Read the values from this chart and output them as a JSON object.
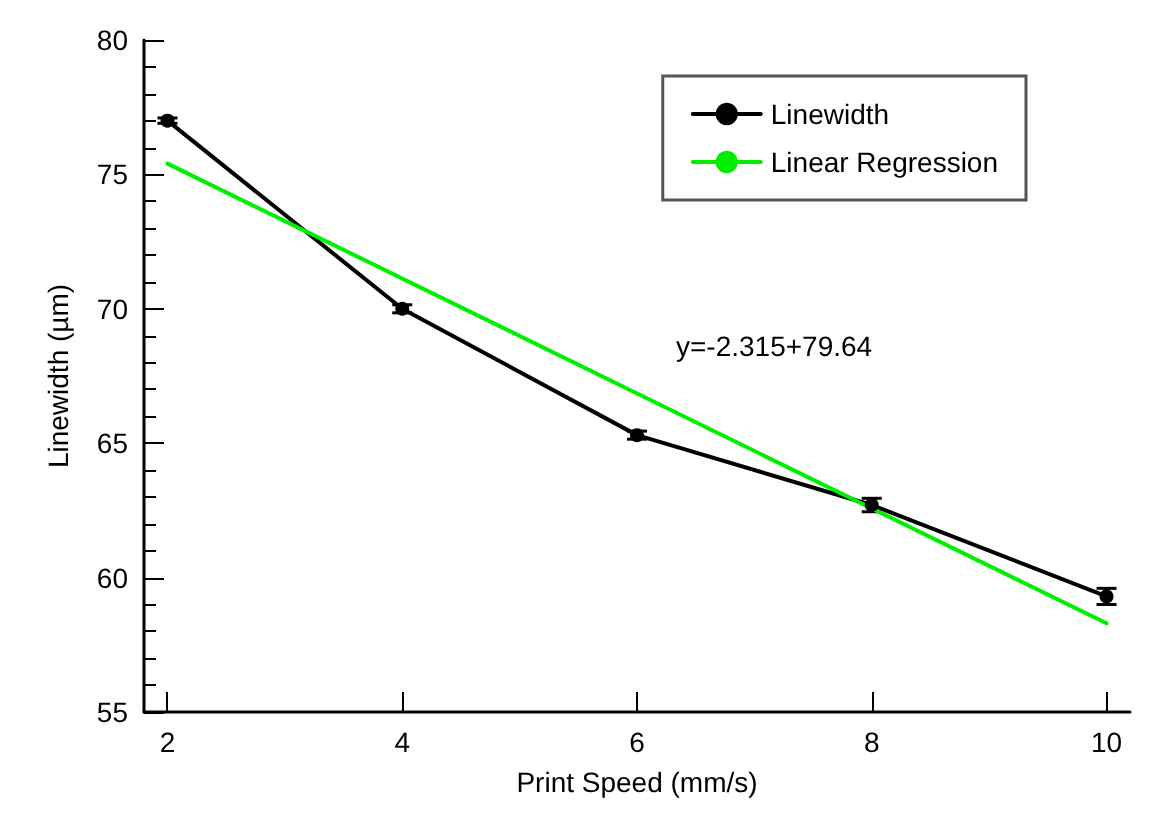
{
  "chart_data": {
    "type": "line",
    "xlabel": "Print Speed (mm/s)",
    "ylabel": "Linewidth (µm)",
    "x": [
      2,
      4,
      6,
      8,
      10
    ],
    "series": [
      {
        "name": "Linewidth",
        "color": "#000000",
        "values": [
          77.0,
          70.0,
          65.3,
          62.7,
          59.3
        ],
        "errors": [
          0.1,
          0.15,
          0.15,
          0.25,
          0.3
        ],
        "marker": "circle"
      },
      {
        "name": "Linear Regression",
        "color": "#00ee00",
        "type": "line",
        "x": [
          2,
          10
        ],
        "values": [
          75.4,
          58.3
        ],
        "marker": "none"
      }
    ],
    "xlim": [
      1.8,
      10.2
    ],
    "xticks": [
      2,
      4,
      6,
      8,
      10
    ],
    "ylim": [
      55,
      80
    ],
    "yticks": [
      55,
      60,
      65,
      70,
      75,
      80
    ],
    "annotations": [
      "y=-2.315+79.64"
    ],
    "grid": false,
    "legend": "top right",
    "line_style": "solid"
  }
}
